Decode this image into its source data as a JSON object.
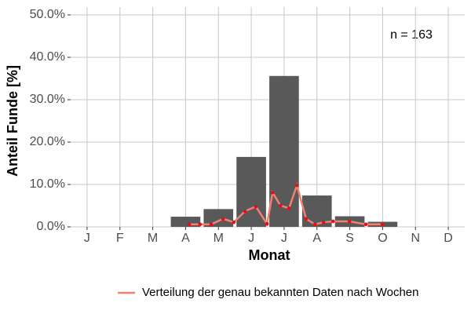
{
  "chart_data": {
    "type": "bar",
    "ylabel": "Anteil Funde [%]",
    "xlabel": "Monat",
    "annotation": "n = 163",
    "categories": [
      "J",
      "F",
      "M",
      "A",
      "M",
      "J",
      "J",
      "A",
      "S",
      "O",
      "N",
      "D"
    ],
    "values": [
      0,
      0,
      0,
      2.4,
      4.2,
      16.5,
      35.6,
      7.4,
      2.5,
      1.2,
      0,
      0
    ],
    "color": "#595959",
    "ylim": [
      0,
      50
    ],
    "yticks": [
      {
        "value": 0,
        "label": "0.0%"
      },
      {
        "value": 10,
        "label": "10.0%"
      },
      {
        "value": 20,
        "label": "20.0%"
      },
      {
        "value": 30,
        "label": "30.0%"
      },
      {
        "value": 40,
        "label": "40.0%"
      },
      {
        "value": 50,
        "label": "50.0%"
      }
    ],
    "xlim": [
      0.5,
      12.5
    ],
    "grid": true,
    "line": {
      "type": "line",
      "name": "Verteilung der genau bekannten Daten nach Wochen",
      "color": "#f08070",
      "point_color": "#e3101a",
      "x": [
        4.11,
        4.44,
        4.78,
        5.14,
        5.47,
        5.81,
        6.14,
        6.48,
        6.65,
        6.89,
        7.15,
        7.39,
        7.67,
        7.94,
        8.2,
        8.49,
        8.99,
        9.49,
        9.99
      ],
      "values": [
        0.6,
        0.6,
        0.6,
        1.9,
        1.1,
        3.7,
        4.8,
        0.7,
        8.1,
        5.0,
        4.4,
        9.8,
        1.9,
        0.6,
        1.1,
        1.3,
        1.3,
        0.6,
        0.6
      ]
    },
    "legend": "bottom"
  }
}
